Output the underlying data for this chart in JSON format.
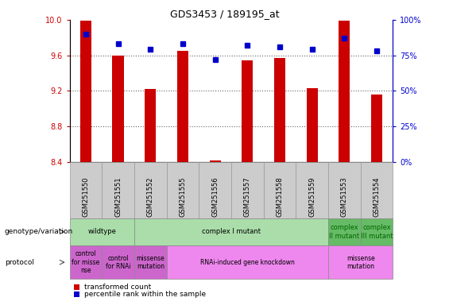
{
  "title": "GDS3453 / 189195_at",
  "samples": [
    "GSM251550",
    "GSM251551",
    "GSM251552",
    "GSM251555",
    "GSM251556",
    "GSM251557",
    "GSM251558",
    "GSM251559",
    "GSM251553",
    "GSM251554"
  ],
  "bar_values": [
    9.99,
    9.6,
    9.22,
    9.65,
    8.41,
    9.54,
    9.57,
    9.23,
    9.99,
    9.16
  ],
  "dot_values": [
    90,
    83,
    79,
    83,
    72,
    82,
    81,
    79,
    87,
    78
  ],
  "ylim": [
    8.4,
    10.0
  ],
  "y2lim": [
    0,
    100
  ],
  "yticks": [
    8.4,
    8.8,
    9.2,
    9.6,
    10.0
  ],
  "y2ticks": [
    0,
    25,
    50,
    75,
    100
  ],
  "bar_color": "#cc0000",
  "dot_color": "#0000cc",
  "bar_bottom": 8.4,
  "genotype_row": [
    {
      "label": "wildtype",
      "start": 0,
      "end": 2,
      "color": "#aaddaa",
      "text_color": "#000000"
    },
    {
      "label": "complex I mutant",
      "start": 2,
      "end": 8,
      "color": "#aaddaa",
      "text_color": "#000000"
    },
    {
      "label": "complex\nII mutant",
      "start": 8,
      "end": 9,
      "color": "#66bb66",
      "text_color": "#006600"
    },
    {
      "label": "complex\nIII mutant",
      "start": 9,
      "end": 10,
      "color": "#66bb66",
      "text_color": "#006600"
    }
  ],
  "protocol_row": [
    {
      "label": "control\nfor misse\nnse",
      "start": 0,
      "end": 1,
      "color": "#cc66cc",
      "text_color": "#000000"
    },
    {
      "label": "control\nfor RNAi",
      "start": 1,
      "end": 2,
      "color": "#cc66cc",
      "text_color": "#000000"
    },
    {
      "label": "missense\nmutation",
      "start": 2,
      "end": 3,
      "color": "#cc66cc",
      "text_color": "#000000"
    },
    {
      "label": "RNAi-induced gene knockdown",
      "start": 3,
      "end": 8,
      "color": "#ee88ee",
      "text_color": "#000000"
    },
    {
      "label": "missense\nmutation",
      "start": 8,
      "end": 10,
      "color": "#ee88ee",
      "text_color": "#000000"
    }
  ],
  "legend_items": [
    {
      "color": "#cc0000",
      "label": "transformed count"
    },
    {
      "color": "#0000cc",
      "label": "percentile rank within the sample"
    }
  ],
  "sample_bg_color": "#cccccc",
  "sample_border_color": "#999999"
}
